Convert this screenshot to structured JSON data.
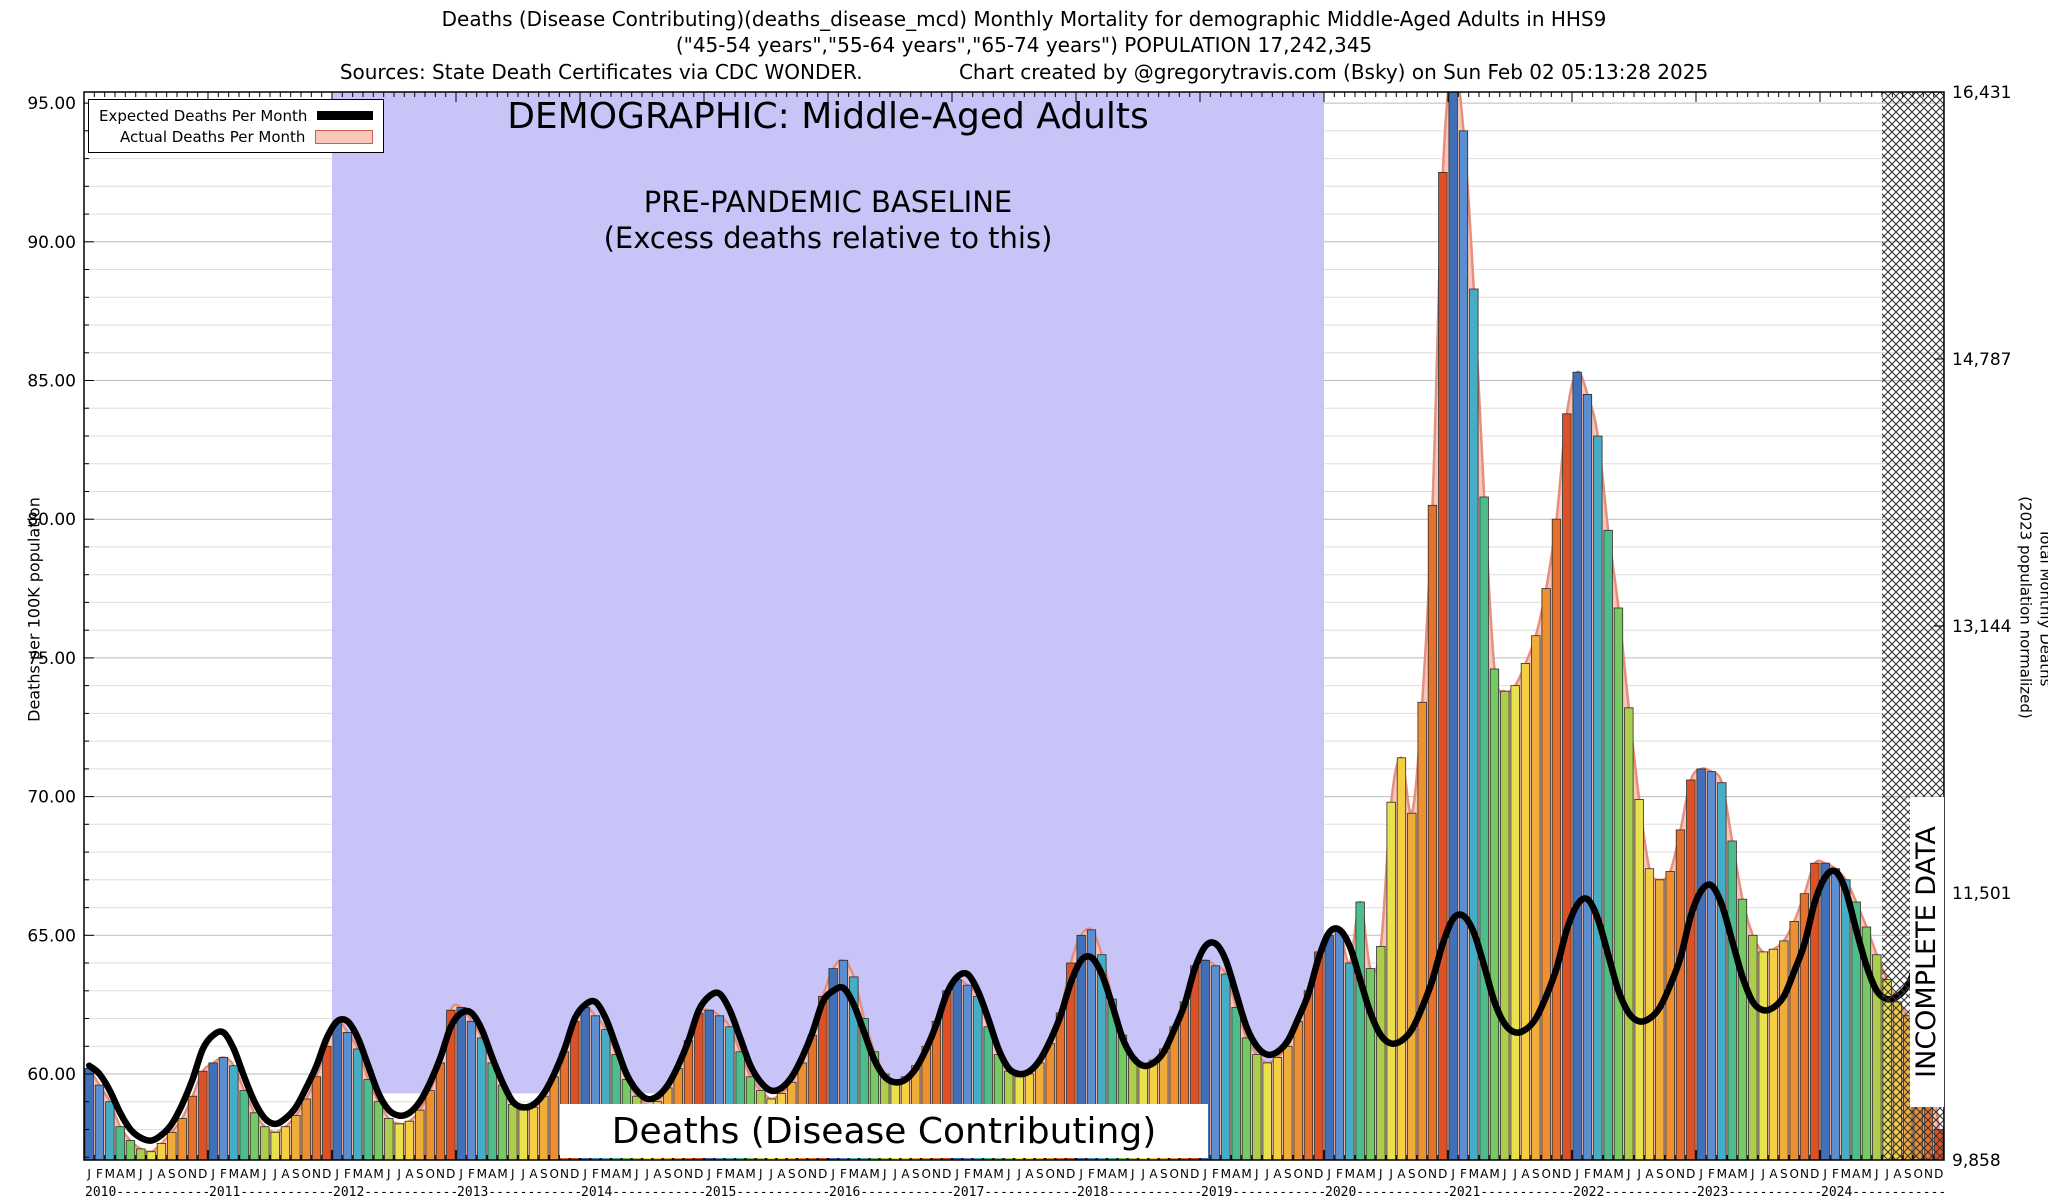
{
  "header": {
    "line1": "Deaths (Disease Contributing)(deaths_disease_mcd) Monthly Mortality for demographic Middle-Aged Adults in HHS9",
    "line2": "(\"45-54 years\",\"55-64 years\",\"65-74 years\") POPULATION 17,242,345",
    "sources": "Sources: State Death Certificates via CDC WONDER.",
    "credit": "Chart created by @gregorytravis.com (Bsky) on Sun Feb 02 05:13:28 2025"
  },
  "legend": {
    "expected_label": "Expected Deaths Per Month",
    "actual_label": "Actual Deaths Per Month"
  },
  "axes": {
    "left_label": "Deaths per 100K population",
    "right_label_line1": "Total Monthly Deaths",
    "right_label_line2": "(2023 population normalized)",
    "left_tick_values": [
      60,
      65,
      70,
      75,
      80,
      85,
      90,
      95
    ],
    "left_tick_labels": [
      "60.00",
      "65.00",
      "70.00",
      "75.00",
      "80.00",
      "85.00",
      "90.00",
      "95.00"
    ],
    "right_tick_labels": [
      "9,858",
      "11,501",
      "13,144",
      "14,787",
      "16,431"
    ]
  },
  "annotations": {
    "demographic_title": "DEMOGRAPHIC: Middle-Aged Adults",
    "baseline_line1": "PRE-PANDEMIC BASELINE",
    "baseline_line2": "(Excess deaths relative to this)",
    "series_label": "Deaths (Disease Contributing)",
    "incomplete_label": "INCOMPLETE DATA"
  },
  "chart_data": {
    "type": "bar",
    "title": "Deaths (Disease Contributing) Monthly Mortality, Middle-Aged Adults, HHS9",
    "ylabel_left": "Deaths per 100K population",
    "ylabel_right": "Total Monthly Deaths (2023 population normalized)",
    "ylim_left": [
      56.9,
      95.4
    ],
    "grid": "horizontal, 1-unit spacing",
    "legend_position": "top-left",
    "years": [
      2010,
      2011,
      2012,
      2013,
      2014,
      2015,
      2016,
      2017,
      2018,
      2019,
      2020,
      2021,
      2022,
      2023,
      2024
    ],
    "month_letters": [
      "J",
      "F",
      "M",
      "A",
      "M",
      "J",
      "J",
      "A",
      "S",
      "O",
      "N",
      "D"
    ],
    "month_colors": [
      "#4170b8",
      "#5a8ed0",
      "#45adc6",
      "#4dbd8b",
      "#77ca63",
      "#accc4e",
      "#e9e24c",
      "#f4cf42",
      "#f1ad39",
      "#ed9031",
      "#e5722c",
      "#dc5126"
    ],
    "expected_line_color": "#000000",
    "actual_fill_color": "#f9c7b9",
    "actual_stroke_color": "#e5907e",
    "baseline_region_color": "#c8c4f8",
    "series": [
      {
        "name": "Expected Deaths Per Month",
        "type": "line",
        "values": [
          60.3,
          60.0,
          59.4,
          58.6,
          58.0,
          57.7,
          57.6,
          57.8,
          58.2,
          58.9,
          59.8,
          60.9,
          61.4,
          61.5,
          60.9,
          59.9,
          59.0,
          58.4,
          58.2,
          58.4,
          58.8,
          59.5,
          60.3,
          61.3,
          61.9,
          61.9,
          61.3,
          60.3,
          59.3,
          58.7,
          58.5,
          58.6,
          59.0,
          59.7,
          60.6,
          61.7,
          62.2,
          62.2,
          61.6,
          60.6,
          59.7,
          59.0,
          58.8,
          58.9,
          59.3,
          60.0,
          60.9,
          62.0,
          62.5,
          62.6,
          62.0,
          61.0,
          60.0,
          59.4,
          59.1,
          59.2,
          59.6,
          60.3,
          61.2,
          62.3,
          62.8,
          62.9,
          62.3,
          61.3,
          60.3,
          59.7,
          59.4,
          59.5,
          59.9,
          60.6,
          61.5,
          62.6,
          63.0,
          63.1,
          62.5,
          61.5,
          60.5,
          59.9,
          59.7,
          59.8,
          60.2,
          60.9,
          61.8,
          62.9,
          63.5,
          63.6,
          63.0,
          62.0,
          60.9,
          60.2,
          60.0,
          60.1,
          60.5,
          61.2,
          62.1,
          63.3,
          64.1,
          64.2,
          63.6,
          62.5,
          61.3,
          60.6,
          60.3,
          60.4,
          60.8,
          61.6,
          62.5,
          63.8,
          64.6,
          64.7,
          64.1,
          62.9,
          61.7,
          61.0,
          60.7,
          60.8,
          61.2,
          62.0,
          62.9,
          64.2,
          65.1,
          65.2,
          64.6,
          63.4,
          62.2,
          61.4,
          61.1,
          61.2,
          61.6,
          62.4,
          63.4,
          64.7,
          65.6,
          65.7,
          65.1,
          63.9,
          62.6,
          61.8,
          61.5,
          61.6,
          62.0,
          62.8,
          63.8,
          65.2,
          66.1,
          66.3,
          65.6,
          64.3,
          63.0,
          62.2,
          61.9,
          62.0,
          62.4,
          63.2,
          64.2,
          65.7,
          66.6,
          66.8,
          66.1,
          64.8,
          63.5,
          62.6,
          62.3,
          62.4,
          62.8,
          63.7,
          64.7,
          66.2,
          67.1,
          67.3,
          66.6,
          65.2,
          63.9,
          63.0,
          62.7,
          62.8,
          63.2,
          64.1,
          65.1,
          66.6
        ]
      },
      {
        "name": "Actual Deaths Per Month",
        "type": "bar",
        "values": [
          60.2,
          59.6,
          59.0,
          58.1,
          57.6,
          57.3,
          57.2,
          57.5,
          57.9,
          58.4,
          59.2,
          60.1,
          60.4,
          60.6,
          60.3,
          59.4,
          58.6,
          58.1,
          57.9,
          58.1,
          58.5,
          59.1,
          59.9,
          61.0,
          61.9,
          61.5,
          60.9,
          59.8,
          59.0,
          58.4,
          58.2,
          58.3,
          58.7,
          59.4,
          60.4,
          62.3,
          62.4,
          61.9,
          61.3,
          60.4,
          59.6,
          58.9,
          58.7,
          58.8,
          59.2,
          59.9,
          60.8,
          61.9,
          62.4,
          62.1,
          61.6,
          60.7,
          59.8,
          59.2,
          58.9,
          59.0,
          59.5,
          60.2,
          61.2,
          62.2,
          62.3,
          62.1,
          61.7,
          60.8,
          59.9,
          59.4,
          59.1,
          59.3,
          59.7,
          60.4,
          61.4,
          62.8,
          63.8,
          64.1,
          63.5,
          62.0,
          60.8,
          60.0,
          59.7,
          59.9,
          60.3,
          61.0,
          61.9,
          63.0,
          63.4,
          63.2,
          62.8,
          61.7,
          60.7,
          60.1,
          59.9,
          60.0,
          60.4,
          61.1,
          62.2,
          64.0,
          65.0,
          65.2,
          64.3,
          62.7,
          61.4,
          60.6,
          60.3,
          60.5,
          60.9,
          61.7,
          62.6,
          63.9,
          64.1,
          63.9,
          63.6,
          62.4,
          61.3,
          60.7,
          60.4,
          60.6,
          61.0,
          61.9,
          63.0,
          64.4,
          65.0,
          65.2,
          64.0,
          66.2,
          63.8,
          64.6,
          69.8,
          71.4,
          69.4,
          73.4,
          80.5,
          92.5,
          96.5,
          94.0,
          88.3,
          80.8,
          74.6,
          73.8,
          74.0,
          74.8,
          75.8,
          77.5,
          80.0,
          83.8,
          85.3,
          84.5,
          83.0,
          79.6,
          76.8,
          73.2,
          69.9,
          67.4,
          67.0,
          67.3,
          68.8,
          70.6,
          71.0,
          70.9,
          70.5,
          68.4,
          66.3,
          65.0,
          64.4,
          64.5,
          64.8,
          65.5,
          66.5,
          67.6,
          67.6,
          67.4,
          67.0,
          66.2,
          65.3,
          64.3,
          63.4,
          62.6,
          62.1,
          61.8,
          61.0,
          58.0
        ]
      }
    ],
    "shaded_region": {
      "label": "PRE-PANDEMIC BASELINE",
      "start_month_index": 24,
      "end_month_index": 120,
      "bottom_value": 59.3
    },
    "incomplete_region": {
      "label": "INCOMPLETE DATA",
      "start_month_index": 174,
      "end_month_index": 180
    }
  }
}
